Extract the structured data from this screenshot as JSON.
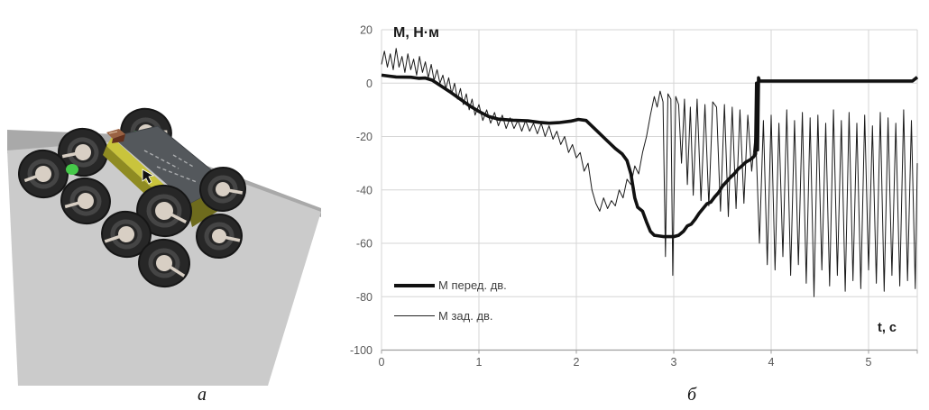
{
  "figure": {
    "label_a": "а",
    "label_b": "б"
  },
  "colors": {
    "series_line": "#111111",
    "grid": "#d6d6d6",
    "axis": "#9e9e9e",
    "tick_text": "#595959",
    "ground_light": "#cbcbcb",
    "ground_dark": "#a9a9a9",
    "rover_body_yellow": "#b3ad2b",
    "rover_deck_gray": "#54585c",
    "wheel_tire": "#272727",
    "wheel_hub": "#d8cfc4",
    "suspension_green": "#55dd58",
    "cargo_box_red": "#9a6243"
  },
  "chart_data": {
    "type": "line",
    "title": "М, Н·м",
    "xlabel": "t, с",
    "ylabel": "",
    "xlim": [
      0,
      5.5
    ],
    "ylim": [
      -100,
      20
    ],
    "xticks": [
      0,
      1,
      2,
      3,
      4,
      5
    ],
    "yticks": [
      20,
      0,
      -20,
      -40,
      -60,
      -80,
      -100
    ],
    "grid": true,
    "legend_position": "inside-bottom-left",
    "series": [
      {
        "name": "М перед. дв.",
        "style": "thick",
        "color": "#111111",
        "width": 3.6,
        "points": [
          [
            0,
            3
          ],
          [
            0.08,
            2.6
          ],
          [
            0.15,
            2.3
          ],
          [
            0.3,
            2.2
          ],
          [
            0.38,
            1.8
          ],
          [
            0.45,
            1.9
          ],
          [
            0.52,
            1.1
          ],
          [
            0.6,
            -0.8
          ],
          [
            0.7,
            -3.2
          ],
          [
            0.8,
            -5.8
          ],
          [
            0.9,
            -8.4
          ],
          [
            1,
            -10.6
          ],
          [
            1.1,
            -12.5
          ],
          [
            1.2,
            -13.5
          ],
          [
            1.35,
            -13.9
          ],
          [
            1.5,
            -14.1
          ],
          [
            1.62,
            -14.7
          ],
          [
            1.72,
            -15
          ],
          [
            1.82,
            -14.8
          ],
          [
            1.95,
            -14.2
          ],
          [
            2.02,
            -13.6
          ],
          [
            2.1,
            -14
          ],
          [
            2.2,
            -17.5
          ],
          [
            2.3,
            -21
          ],
          [
            2.4,
            -24.5
          ],
          [
            2.47,
            -26.5
          ],
          [
            2.52,
            -29
          ],
          [
            2.56,
            -34
          ],
          [
            2.6,
            -43
          ],
          [
            2.63,
            -46.5
          ],
          [
            2.68,
            -48
          ],
          [
            2.72,
            -52
          ],
          [
            2.76,
            -55.5
          ],
          [
            2.8,
            -57
          ],
          [
            2.9,
            -57.5
          ],
          [
            3,
            -57.5
          ],
          [
            3.05,
            -57
          ],
          [
            3.1,
            -55.5
          ],
          [
            3.14,
            -53.5
          ],
          [
            3.18,
            -52.8
          ],
          [
            3.22,
            -51
          ],
          [
            3.26,
            -48.8
          ],
          [
            3.3,
            -47
          ],
          [
            3.34,
            -45.2
          ],
          [
            3.38,
            -44.6
          ],
          [
            3.42,
            -42.6
          ],
          [
            3.46,
            -41
          ],
          [
            3.5,
            -38.6
          ],
          [
            3.54,
            -37
          ],
          [
            3.58,
            -35.4
          ],
          [
            3.62,
            -34
          ],
          [
            3.66,
            -32.2
          ],
          [
            3.7,
            -31
          ],
          [
            3.74,
            -29.6
          ],
          [
            3.78,
            -28.8
          ],
          [
            3.82,
            -27.6
          ],
          [
            3.84,
            -26.5
          ],
          [
            3.85,
            0
          ],
          [
            3.86,
            -25
          ],
          [
            3.87,
            2
          ],
          [
            3.88,
            0.8
          ],
          [
            4.2,
            0.8
          ],
          [
            4.7,
            0.8
          ],
          [
            5.2,
            0.8
          ],
          [
            5.45,
            0.8
          ],
          [
            5.5,
            2.2
          ]
        ]
      },
      {
        "name": "М зад. дв.",
        "style": "thin",
        "color": "#1a1a1a",
        "width": 1,
        "points": [
          [
            0,
            7
          ],
          [
            0.03,
            12
          ],
          [
            0.06,
            6
          ],
          [
            0.09,
            11
          ],
          [
            0.12,
            5
          ],
          [
            0.15,
            13
          ],
          [
            0.18,
            6
          ],
          [
            0.21,
            10
          ],
          [
            0.24,
            4
          ],
          [
            0.27,
            11
          ],
          [
            0.3,
            5
          ],
          [
            0.33,
            9
          ],
          [
            0.36,
            3
          ],
          [
            0.39,
            10
          ],
          [
            0.42,
            4
          ],
          [
            0.45,
            8
          ],
          [
            0.48,
            2
          ],
          [
            0.51,
            7
          ],
          [
            0.54,
            1
          ],
          [
            0.57,
            5
          ],
          [
            0.6,
            0
          ],
          [
            0.63,
            3
          ],
          [
            0.66,
            -2
          ],
          [
            0.69,
            2
          ],
          [
            0.72,
            -4
          ],
          [
            0.75,
            0
          ],
          [
            0.78,
            -6
          ],
          [
            0.81,
            -2
          ],
          [
            0.84,
            -8
          ],
          [
            0.87,
            -4
          ],
          [
            0.9,
            -10
          ],
          [
            0.93,
            -6
          ],
          [
            0.96,
            -12
          ],
          [
            1,
            -8
          ],
          [
            1.04,
            -14
          ],
          [
            1.08,
            -10
          ],
          [
            1.12,
            -15
          ],
          [
            1.16,
            -11
          ],
          [
            1.2,
            -16
          ],
          [
            1.24,
            -12
          ],
          [
            1.28,
            -17
          ],
          [
            1.32,
            -13
          ],
          [
            1.36,
            -17
          ],
          [
            1.4,
            -14
          ],
          [
            1.44,
            -18
          ],
          [
            1.48,
            -14
          ],
          [
            1.52,
            -18
          ],
          [
            1.56,
            -15
          ],
          [
            1.6,
            -19
          ],
          [
            1.64,
            -15
          ],
          [
            1.68,
            -20
          ],
          [
            1.72,
            -16
          ],
          [
            1.76,
            -21
          ],
          [
            1.8,
            -18
          ],
          [
            1.84,
            -23
          ],
          [
            1.88,
            -20
          ],
          [
            1.92,
            -26
          ],
          [
            1.96,
            -23
          ],
          [
            2,
            -28
          ],
          [
            2.04,
            -26
          ],
          [
            2.08,
            -33
          ],
          [
            2.12,
            -30
          ],
          [
            2.16,
            -40
          ],
          [
            2.2,
            -45
          ],
          [
            2.24,
            -48
          ],
          [
            2.28,
            -43
          ],
          [
            2.32,
            -47
          ],
          [
            2.36,
            -44
          ],
          [
            2.4,
            -46
          ],
          [
            2.44,
            -40
          ],
          [
            2.48,
            -43
          ],
          [
            2.52,
            -36
          ],
          [
            2.56,
            -38
          ],
          [
            2.6,
            -31
          ],
          [
            2.64,
            -34
          ],
          [
            2.68,
            -26
          ],
          [
            2.72,
            -20
          ],
          [
            2.76,
            -12
          ],
          [
            2.8,
            -5
          ],
          [
            2.83,
            -9
          ],
          [
            2.86,
            -3
          ],
          [
            2.89,
            -7
          ],
          [
            2.915,
            -65
          ],
          [
            2.94,
            -4
          ],
          [
            2.97,
            -6
          ],
          [
            2.99,
            -72
          ],
          [
            3.02,
            -5
          ],
          [
            3.05,
            -8
          ],
          [
            3.08,
            -30
          ],
          [
            3.11,
            -6
          ],
          [
            3.14,
            -38
          ],
          [
            3.17,
            -9
          ],
          [
            3.2,
            -42
          ],
          [
            3.24,
            -6
          ],
          [
            3.28,
            -44
          ],
          [
            3.32,
            -8
          ],
          [
            3.36,
            -46
          ],
          [
            3.4,
            -7
          ],
          [
            3.44,
            -9
          ],
          [
            3.48,
            -48
          ],
          [
            3.52,
            -8
          ],
          [
            3.56,
            -50
          ],
          [
            3.6,
            -9
          ],
          [
            3.64,
            -47
          ],
          [
            3.68,
            -10
          ],
          [
            3.72,
            -45
          ],
          [
            3.76,
            -12
          ],
          [
            3.8,
            -33
          ],
          [
            3.84,
            -18
          ],
          [
            3.88,
            -60
          ],
          [
            3.92,
            -14
          ],
          [
            3.96,
            -68
          ],
          [
            4,
            -12
          ],
          [
            4.04,
            -70
          ],
          [
            4.08,
            -15
          ],
          [
            4.12,
            -65
          ],
          [
            4.16,
            -10
          ],
          [
            4.2,
            -72
          ],
          [
            4.24,
            -14
          ],
          [
            4.28,
            -68
          ],
          [
            4.32,
            -11
          ],
          [
            4.36,
            -75
          ],
          [
            4.4,
            -13
          ],
          [
            4.44,
            -80
          ],
          [
            4.48,
            -12
          ],
          [
            4.52,
            -70
          ],
          [
            4.56,
            -15
          ],
          [
            4.6,
            -76
          ],
          [
            4.64,
            -10
          ],
          [
            4.68,
            -72
          ],
          [
            4.72,
            -14
          ],
          [
            4.76,
            -78
          ],
          [
            4.8,
            -11
          ],
          [
            4.84,
            -74
          ],
          [
            4.88,
            -15
          ],
          [
            4.92,
            -77
          ],
          [
            4.96,
            -12
          ],
          [
            5,
            -70
          ],
          [
            5.04,
            -16
          ],
          [
            5.08,
            -75
          ],
          [
            5.12,
            -11
          ],
          [
            5.16,
            -78
          ],
          [
            5.2,
            -13
          ],
          [
            5.24,
            -72
          ],
          [
            5.28,
            -15
          ],
          [
            5.32,
            -76
          ],
          [
            5.36,
            -10
          ],
          [
            5.4,
            -74
          ],
          [
            5.44,
            -14
          ],
          [
            5.48,
            -77
          ],
          [
            5.5,
            -30
          ]
        ]
      }
    ]
  }
}
